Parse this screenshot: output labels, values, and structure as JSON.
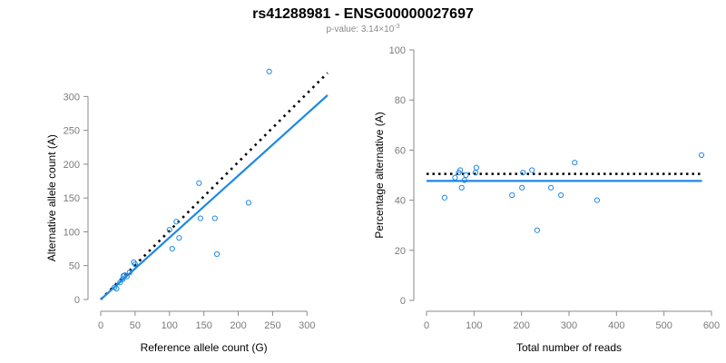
{
  "header": {
    "title": "rs41288981 - ENSG00000027697",
    "pvalue_prefix": "p-value: 3.14×10",
    "pvalue_exponent": "-3"
  },
  "chart_data": [
    {
      "type": "scatter",
      "xlabel": "Reference allele count (G)",
      "ylabel": "Alternative allele count (A)",
      "xlim": [
        0,
        330
      ],
      "ylim": [
        0,
        330
      ],
      "xticks": [
        0,
        50,
        100,
        150,
        200,
        250,
        300
      ],
      "yticks": [
        0,
        50,
        100,
        150,
        200,
        250,
        300
      ],
      "point_color": "#1e88e5",
      "points": [
        {
          "x": 20,
          "y": 18
        },
        {
          "x": 23,
          "y": 16
        },
        {
          "x": 28,
          "y": 25
        },
        {
          "x": 32,
          "y": 30
        },
        {
          "x": 33,
          "y": 35
        },
        {
          "x": 35,
          "y": 36
        },
        {
          "x": 38,
          "y": 34
        },
        {
          "x": 42,
          "y": 40
        },
        {
          "x": 48,
          "y": 55
        },
        {
          "x": 50,
          "y": 52
        },
        {
          "x": 100,
          "y": 103
        },
        {
          "x": 104,
          "y": 75
        },
        {
          "x": 110,
          "y": 115
        },
        {
          "x": 114,
          "y": 91
        },
        {
          "x": 143,
          "y": 172
        },
        {
          "x": 145,
          "y": 120
        },
        {
          "x": 166,
          "y": 120
        },
        {
          "x": 169,
          "y": 67
        },
        {
          "x": 215,
          "y": 143
        },
        {
          "x": 245,
          "y": 337
        }
      ],
      "reference_line": {
        "style": "dotted",
        "color": "#000000",
        "x": [
          0,
          330
        ],
        "y": [
          0,
          335
        ]
      },
      "fit_line": {
        "style": "solid",
        "color": "#1e88e5",
        "x": [
          0,
          330
        ],
        "y": [
          0,
          302
        ]
      }
    },
    {
      "type": "scatter",
      "xlabel": "Total number of reads",
      "ylabel": "Percentage alternative (A)",
      "xlim": [
        0,
        600
      ],
      "ylim": [
        0,
        100
      ],
      "xticks": [
        0,
        100,
        200,
        300,
        400,
        500,
        600
      ],
      "yticks": [
        0,
        20,
        40,
        60,
        80,
        100
      ],
      "point_color": "#1e88e5",
      "points": [
        {
          "x": 38,
          "y": 41
        },
        {
          "x": 60,
          "y": 49
        },
        {
          "x": 68,
          "y": 51
        },
        {
          "x": 71,
          "y": 52
        },
        {
          "x": 74,
          "y": 45
        },
        {
          "x": 80,
          "y": 48
        },
        {
          "x": 83,
          "y": 50
        },
        {
          "x": 103,
          "y": 51
        },
        {
          "x": 105,
          "y": 53
        },
        {
          "x": 180,
          "y": 42
        },
        {
          "x": 201,
          "y": 45
        },
        {
          "x": 203,
          "y": 51
        },
        {
          "x": 222,
          "y": 52
        },
        {
          "x": 233,
          "y": 28
        },
        {
          "x": 262,
          "y": 45
        },
        {
          "x": 283,
          "y": 42
        },
        {
          "x": 312,
          "y": 55
        },
        {
          "x": 359,
          "y": 40
        },
        {
          "x": 579,
          "y": 58
        }
      ],
      "reference_line": {
        "style": "dotted",
        "color": "#000000",
        "x": [
          0,
          580
        ],
        "y": [
          50.5,
          50.5
        ]
      },
      "fit_line": {
        "style": "solid",
        "color": "#1e88e5",
        "x": [
          0,
          580
        ],
        "y": [
          47.7,
          47.7
        ]
      }
    }
  ]
}
